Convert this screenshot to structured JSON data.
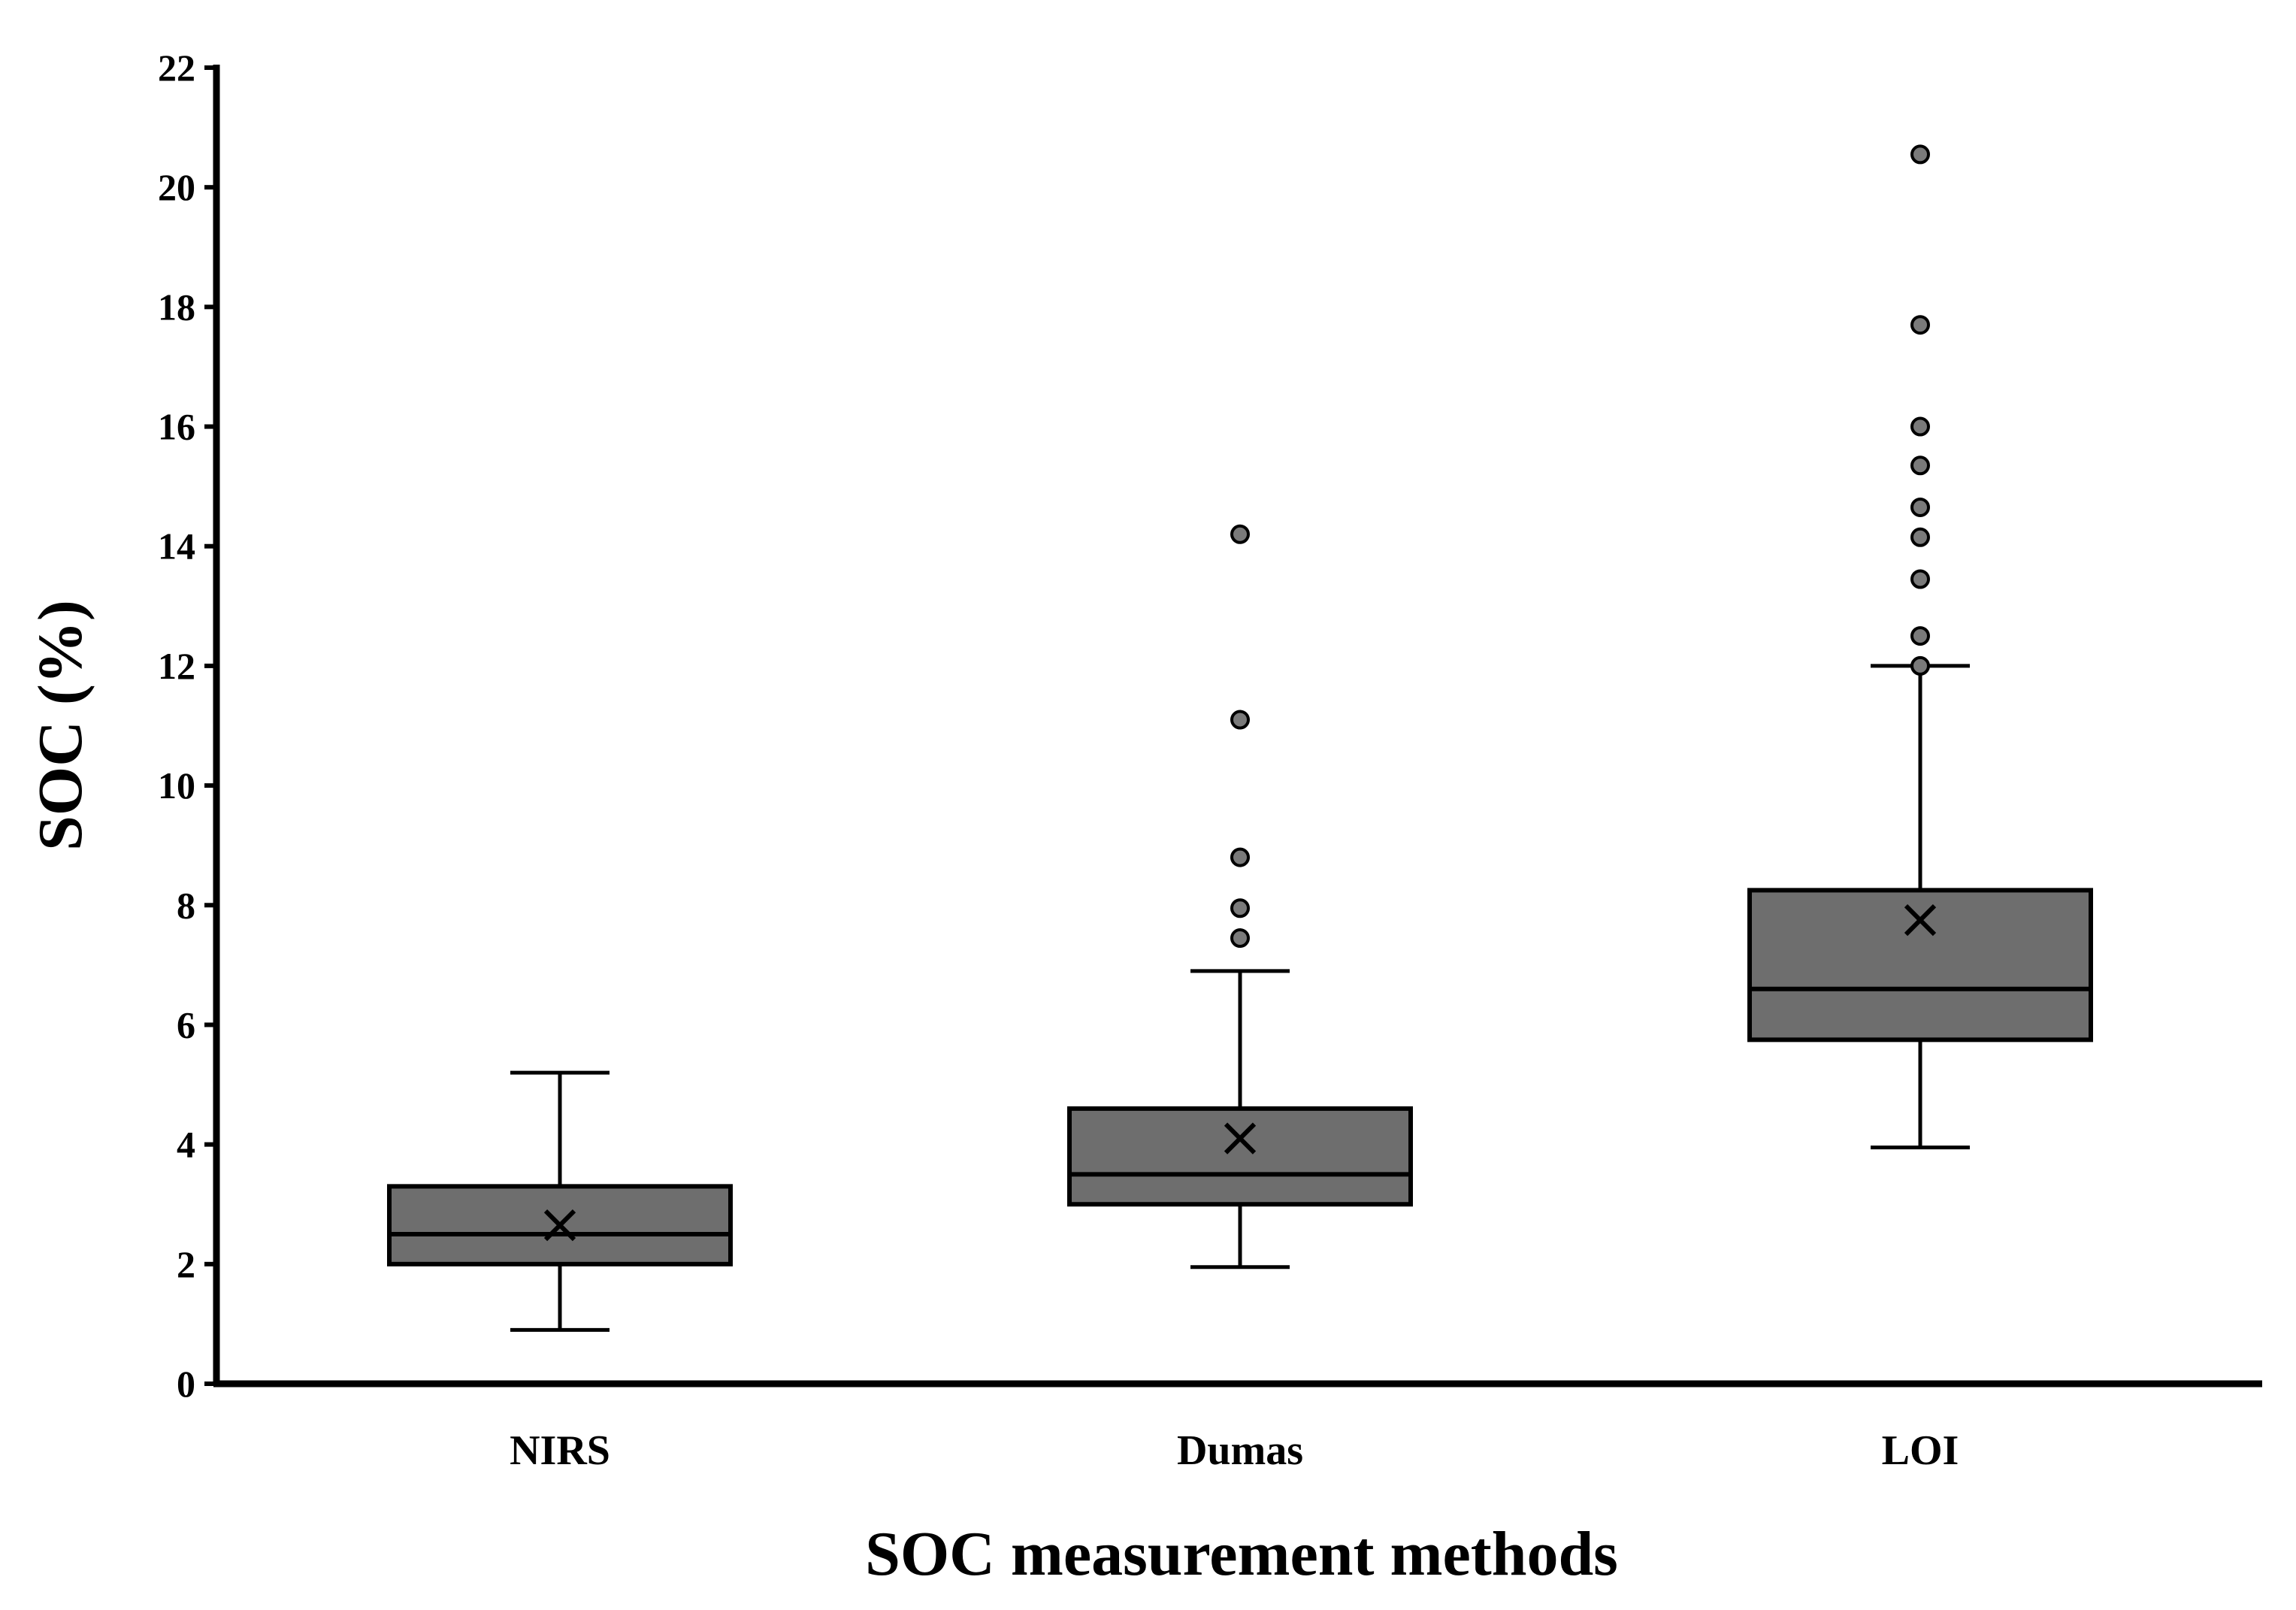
{
  "chart_data": {
    "type": "boxplot",
    "title": "",
    "xlabel": "SOC measurement methods",
    "ylabel": "SOC (%)",
    "ylim": [
      0,
      22
    ],
    "yticks": [
      0,
      2,
      4,
      6,
      8,
      10,
      12,
      14,
      16,
      18,
      20,
      22
    ],
    "categories": [
      "NIRS",
      "Dumas",
      "LOI"
    ],
    "boxes": [
      {
        "name": "NIRS",
        "whisker_low": 0.9,
        "q1": 2.0,
        "median": 2.5,
        "q3": 3.3,
        "whisker_high": 5.2,
        "mean": 2.65,
        "outliers": []
      },
      {
        "name": "Dumas",
        "whisker_low": 1.95,
        "q1": 3.0,
        "median": 3.5,
        "q3": 4.6,
        "whisker_high": 6.9,
        "mean": 4.1,
        "outliers": [
          7.45,
          7.95,
          8.8,
          11.1,
          14.2
        ]
      },
      {
        "name": "LOI",
        "whisker_low": 3.95,
        "q1": 5.75,
        "median": 6.6,
        "q3": 8.25,
        "whisker_high": 12.0,
        "mean": 7.75,
        "outliers": [
          12.0,
          12.5,
          13.45,
          14.15,
          14.65,
          15.35,
          16.0,
          17.7,
          20.55
        ]
      }
    ],
    "box_color": "#6e6e6e",
    "outlier_color": "#7a7a7a",
    "line_color": "#000000"
  }
}
